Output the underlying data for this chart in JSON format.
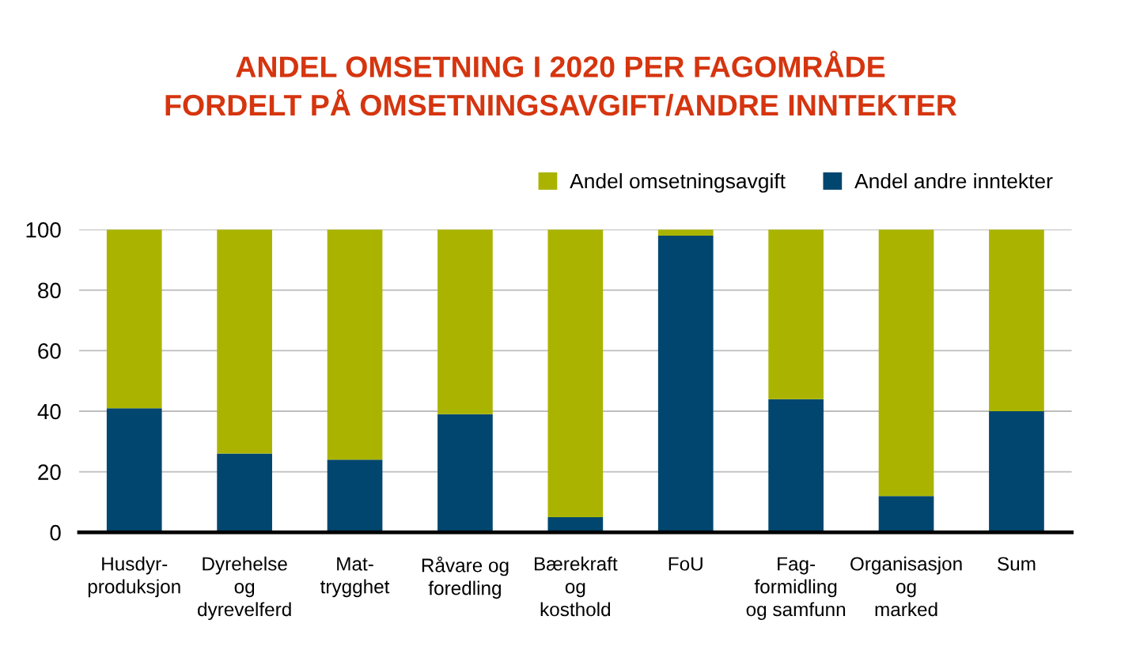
{
  "chart_data": {
    "type": "bar",
    "title": "ANDEL OMSETNING I 2020 PER FAGOMRÅDE\nFORDELT PÅ OMSETNINGSAVGIFT/ANDRE INNTEKTER",
    "categories": [
      "Husdyr-\nproduksjon",
      "Dyrehelse\nog\ndyrevelferd",
      "Mat-\ntrygghet",
      "Råvare og\nforedling",
      "Bærekraft\nog\nkosthold",
      "FoU",
      "Fag-\nformidling\nog samfunn",
      "Organisasjon\nog\nmarked",
      "Sum"
    ],
    "series": [
      {
        "name": "Andel andre inntekter",
        "color": "#00466e",
        "values": [
          41,
          26,
          24,
          39,
          5,
          98,
          44,
          12,
          40
        ]
      },
      {
        "name": "Andel omsetningsavgift",
        "color": "#aab400",
        "values": [
          59,
          74,
          76,
          61,
          95,
          2,
          56,
          88,
          60
        ]
      }
    ],
    "stacked": true,
    "ylim": [
      0,
      100
    ],
    "yticks": [
      0,
      20,
      40,
      60,
      80,
      100
    ],
    "grid": "y",
    "legend": "top right"
  }
}
